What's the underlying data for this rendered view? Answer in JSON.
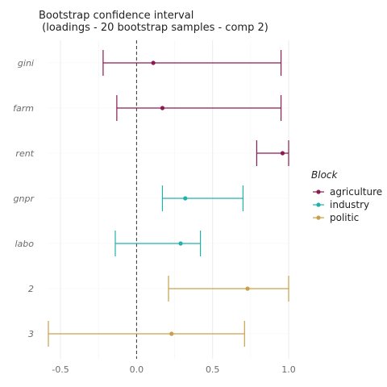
{
  "chart_data": {
    "type": "errorbar",
    "title_line1": "Bootstrap confidence interval",
    "title_line2": " (loadings - 20 bootstrap samples - comp 2)",
    "xlabel": "",
    "ylabel": "",
    "xlim": [
      -0.58,
      1.0
    ],
    "x_ticks": [
      {
        "value": -0.5,
        "label": "-0.5"
      },
      {
        "value": 0.0,
        "label": "0.0"
      },
      {
        "value": 0.5,
        "label": "0.5"
      },
      {
        "value": 1.0,
        "label": "1.0"
      }
    ],
    "reference_line": 0,
    "grid": true,
    "legend": {
      "title": "Block",
      "placement": "right",
      "entries": [
        {
          "name": "agriculture",
          "color": "#8b1a4f"
        },
        {
          "name": "industry",
          "color": "#20b2aa"
        },
        {
          "name": "politic",
          "color": "#c9a04a"
        }
      ]
    },
    "rows": [
      {
        "label": "gini",
        "block": "agriculture",
        "estimate": 0.11,
        "lower": -0.22,
        "upper": 0.95
      },
      {
        "label": "farm",
        "block": "agriculture",
        "estimate": 0.17,
        "lower": -0.13,
        "upper": 0.95
      },
      {
        "label": "rent",
        "block": "agriculture",
        "estimate": 0.96,
        "lower": 0.79,
        "upper": 1.0
      },
      {
        "label": "gnpr",
        "block": "industry",
        "estimate": 0.32,
        "lower": 0.17,
        "upper": 0.7
      },
      {
        "label": "labo",
        "block": "industry",
        "estimate": 0.29,
        "lower": -0.14,
        "upper": 0.42
      },
      {
        "label": "2",
        "block": "politic",
        "estimate": 0.73,
        "lower": 0.21,
        "upper": 1.0
      },
      {
        "label": "3",
        "block": "politic",
        "estimate": 0.23,
        "lower": -0.58,
        "upper": 0.71
      }
    ]
  }
}
